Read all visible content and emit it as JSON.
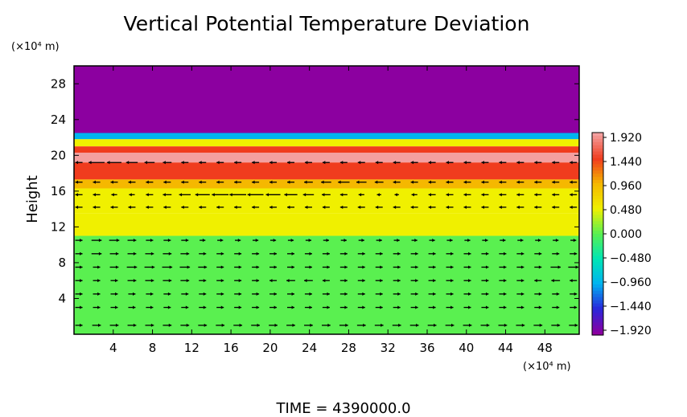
{
  "chart_data": {
    "type": "heatmap",
    "title": "Vertical Potential Temperature Deviation",
    "ylabel": "Height",
    "x_unit_label": "(×10⁴ m)",
    "y_unit_label": "(×10⁴ m)",
    "footer": "TIME  =  4390000.0",
    "xlim": [
      0,
      51.5
    ],
    "ylim": [
      0,
      30
    ],
    "x_ticks": [
      "4",
      "8",
      "12",
      "16",
      "20",
      "24",
      "28",
      "32",
      "36",
      "40",
      "44",
      "48"
    ],
    "x_tick_values": [
      4,
      8,
      12,
      16,
      20,
      24,
      28,
      32,
      36,
      40,
      44,
      48
    ],
    "y_ticks": [
      "4",
      "8",
      "12",
      "16",
      "20",
      "24",
      "28"
    ],
    "y_tick_values": [
      4,
      8,
      12,
      16,
      20,
      24,
      28
    ],
    "colorbar": {
      "labels": [
        "1.920",
        "1.440",
        "0.960",
        "0.480",
        "0.000",
        "−0.480",
        "−0.960",
        "−1.440",
        "−1.920"
      ],
      "values": [
        1.92,
        1.44,
        0.96,
        0.48,
        0.0,
        -0.48,
        -0.96,
        -1.44,
        -1.92
      ],
      "colors": [
        "#f4a0a0",
        "#f03c1e",
        "#f5b800",
        "#f0f000",
        "#5af050",
        "#00e6b4",
        "#00b4f0",
        "#2828dc",
        "#8c00a0"
      ]
    },
    "bands": [
      {
        "y0": 22.5,
        "y1": 30,
        "value": -1.92
      },
      {
        "y0": 21.8,
        "y1": 22.5,
        "value": -0.9
      },
      {
        "y0": 21.0,
        "y1": 21.8,
        "value": 0.7
      },
      {
        "y0": 20.3,
        "y1": 21.0,
        "value": 1.2
      },
      {
        "y0": 19.2,
        "y1": 20.3,
        "value": 1.8
      },
      {
        "y0": 17.3,
        "y1": 19.2,
        "value": 1.3
      },
      {
        "y0": 16.3,
        "y1": 17.3,
        "value": 0.85
      },
      {
        "y0": 13.5,
        "y1": 16.3,
        "value": 0.55
      },
      {
        "y0": 11.0,
        "y1": 13.5,
        "value": 0.3
      },
      {
        "y0": 0,
        "y1": 11.0,
        "value": 0.05
      }
    ],
    "wind_vectors": {
      "x_positions": [
        0.5,
        2.3,
        4.1,
        5.9,
        7.7,
        9.5,
        11.3,
        13.1,
        14.9,
        16.7,
        18.5,
        20.3,
        22.1,
        23.9,
        25.7,
        27.5,
        29.3,
        31.1,
        32.9,
        34.7,
        36.5,
        38.3,
        40.1,
        41.9,
        43.7,
        45.5,
        47.3,
        49.1,
        50.9
      ],
      "rows": [
        {
          "y": 19.2,
          "u": [
            -1,
            -2.2,
            -2,
            -1.6,
            -1.4,
            -1.2,
            -1,
            -1,
            -1,
            -1,
            -1,
            -1,
            -1,
            -1,
            -1,
            -1,
            -1,
            -1,
            -1,
            -1,
            -1,
            -1,
            -1,
            -1,
            -1,
            -1,
            -1,
            -1,
            -1
          ],
          "v": 0
        },
        {
          "y": 17.0,
          "u": [
            -1,
            -1,
            -1,
            -1,
            -1,
            -1,
            -1,
            -1,
            -1,
            -1,
            -1,
            -1,
            -1,
            -1.2,
            -1.4,
            -1.6,
            -1.4,
            -1.2,
            -1,
            -1,
            -1,
            -1,
            -1,
            -1,
            -1,
            -1,
            -1,
            -1,
            -1
          ],
          "v": 0
        },
        {
          "y": 15.6,
          "u": [
            -1,
            -1,
            -0.8,
            -0.8,
            -1,
            -1.2,
            -1.6,
            -2,
            -2.3,
            -2.3,
            -2.2,
            -2,
            -1.8,
            -1.5,
            -1.2,
            -1,
            -0.8,
            -0.6,
            -0.6,
            -0.8,
            -1,
            -1,
            -1,
            -1,
            -1,
            -1,
            -1,
            -1,
            -1
          ],
          "v": 0
        },
        {
          "y": 14.2,
          "u": [
            -1,
            -1,
            -1,
            -1,
            -1,
            -1,
            -1,
            -1,
            -1,
            -1,
            -1,
            -1,
            -1,
            -1,
            -1,
            -1,
            -1,
            -1,
            -1,
            -1,
            -1,
            -1,
            -1,
            -1,
            -1,
            -1,
            -1,
            -1,
            -1
          ],
          "v": 0
        },
        {
          "y": 10.5,
          "u": [
            1,
            1.4,
            1.4,
            1.2,
            1,
            1,
            1,
            0.8,
            0.8,
            0.8,
            0.8,
            0.8,
            0.8,
            0.8,
            0.8,
            0.8,
            0.8,
            0.8,
            0.8,
            0.8,
            0.8,
            0.8,
            0.8,
            0.8,
            0.8,
            0.8,
            0.8,
            0.8,
            0.8
          ],
          "v": 0
        },
        {
          "y": 9.0,
          "u": [
            1,
            1.4,
            1.2,
            1.2,
            1.2,
            1.2,
            1.2,
            1,
            1,
            1,
            1,
            1,
            1,
            1,
            1,
            1,
            1,
            1,
            1,
            1,
            1,
            1,
            1,
            1,
            1,
            1,
            1,
            1,
            1
          ],
          "v": 0
        },
        {
          "y": 7.5,
          "u": [
            1,
            1,
            1.2,
            1.4,
            1.4,
            1.4,
            1.4,
            1.2,
            1,
            1,
            1,
            1,
            1,
            1,
            1,
            1,
            1,
            1,
            1,
            1,
            1,
            1,
            1,
            1,
            1,
            1,
            1,
            1.4,
            1.4
          ],
          "v": 0
        },
        {
          "y": 6.0,
          "u": [
            1,
            1,
            1,
            1.2,
            1.2,
            1.2,
            1.2,
            1,
            1,
            1,
            1,
            -1,
            -1.2,
            -1.2,
            -1,
            1,
            1,
            1,
            1,
            1,
            1,
            1,
            1,
            1,
            1,
            1,
            -1,
            -1.2,
            -1
          ],
          "v": 0
        },
        {
          "y": 4.5,
          "u": [
            1,
            1,
            1,
            1,
            1,
            1,
            1,
            1,
            1,
            1,
            1,
            1,
            1,
            1,
            1,
            1,
            1,
            1,
            1,
            1,
            1,
            1,
            1,
            1,
            1,
            1,
            1,
            1,
            1
          ],
          "v": 0
        },
        {
          "y": 3.0,
          "u": [
            1,
            1,
            1,
            1,
            1,
            1,
            1,
            1,
            1,
            1,
            1,
            1,
            1,
            1,
            1,
            1,
            1,
            1,
            1,
            1,
            1,
            1,
            1,
            1,
            1,
            1,
            1,
            1,
            1
          ],
          "v": 0
        },
        {
          "y": 1.0,
          "u": [
            1,
            1.2,
            1.2,
            1.2,
            1.2,
            1.2,
            1.2,
            1.2,
            1.2,
            1.2,
            1.2,
            1.2,
            1.2,
            1.2,
            1.2,
            1.2,
            1.2,
            1.2,
            1.2,
            1.2,
            1.2,
            1.2,
            1.2,
            1.2,
            1.2,
            1.2,
            1.2,
            1.2,
            1.2
          ],
          "v": 0
        }
      ]
    }
  }
}
